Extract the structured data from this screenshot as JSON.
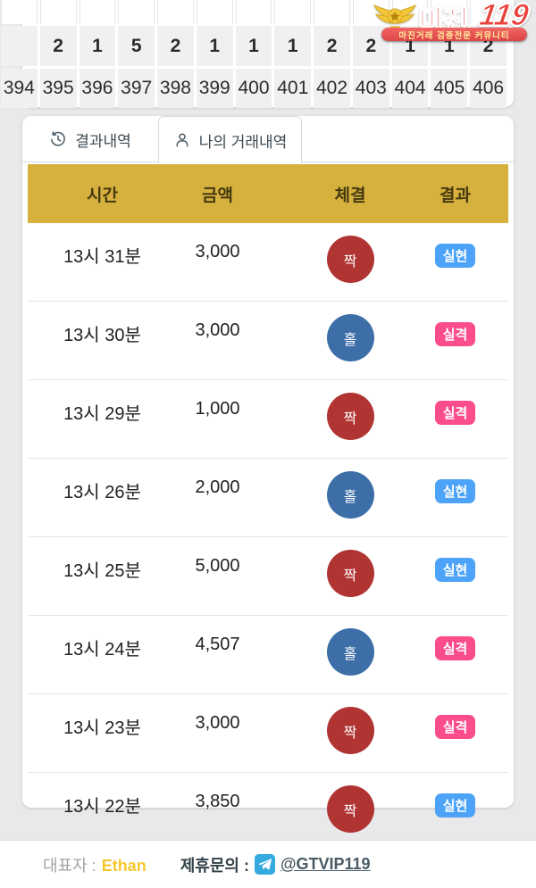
{
  "logo": {
    "name_main": "마진",
    "name_number": "119",
    "tagline": "마진거래 검증전문 커뮤니티",
    "accent_red": "#e8433c",
    "emblem_gold": "#f2c63a"
  },
  "round_strip": {
    "counts": [
      "",
      "2",
      "1",
      "5",
      "2",
      "1",
      "1",
      "1",
      "2",
      "2",
      "1",
      "1",
      "2"
    ],
    "numbers": [
      "394",
      "395",
      "396",
      "397",
      "398",
      "399",
      "400",
      "401",
      "402",
      "403",
      "404",
      "405",
      "406"
    ]
  },
  "tabs": [
    {
      "label": "결과내역",
      "icon": "history-icon",
      "active": false
    },
    {
      "label": "나의 거래내역",
      "icon": "user-icon",
      "active": true
    }
  ],
  "trade_table": {
    "columns": [
      "시간",
      "금액",
      "체결",
      "결과"
    ],
    "header_bg": "#d7b13e",
    "pick_colors": {
      "even": "#b03532",
      "odd": "#3d6ea8"
    },
    "result_colors": {
      "win": "#4da3f7",
      "lose": "#fb4d8b"
    },
    "rows": [
      {
        "time": "13시 31분",
        "amount": "3,000",
        "pick": "짝",
        "pick_type": "even",
        "result": "실현",
        "result_type": "win"
      },
      {
        "time": "13시 30분",
        "amount": "3,000",
        "pick": "홀",
        "pick_type": "odd",
        "result": "실격",
        "result_type": "lose"
      },
      {
        "time": "13시 29분",
        "amount": "1,000",
        "pick": "짝",
        "pick_type": "even",
        "result": "실격",
        "result_type": "lose"
      },
      {
        "time": "13시 26분",
        "amount": "2,000",
        "pick": "홀",
        "pick_type": "odd",
        "result": "실현",
        "result_type": "win"
      },
      {
        "time": "13시 25분",
        "amount": "5,000",
        "pick": "짝",
        "pick_type": "even",
        "result": "실현",
        "result_type": "win"
      },
      {
        "time": "13시 24분",
        "amount": "4,507",
        "pick": "홀",
        "pick_type": "odd",
        "result": "실격",
        "result_type": "lose"
      },
      {
        "time": "13시 23분",
        "amount": "3,000",
        "pick": "짝",
        "pick_type": "even",
        "result": "실격",
        "result_type": "lose"
      },
      {
        "time": "13시 22분",
        "amount": "3,850",
        "pick": "짝",
        "pick_type": "even",
        "result": "실현",
        "result_type": "win"
      }
    ]
  },
  "footer": {
    "rep_label": "대표자 :",
    "rep_value": "Ethan",
    "contact_label": "제휴문의 :",
    "contact_value": "@GTVIP119",
    "telegram_blue": "#35aadf"
  }
}
